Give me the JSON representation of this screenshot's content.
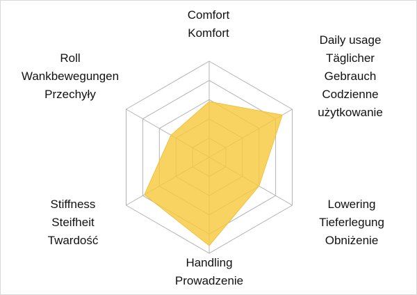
{
  "chart_data": {
    "type": "radar",
    "title": "",
    "max": 5,
    "rings": 5,
    "grid": true,
    "legend": "none",
    "fill_color": "rgba(247,201,62,0.82)",
    "stroke_color": "#eec33a",
    "grid_color": "#b3b3b3",
    "axes": [
      {
        "name": "comfort",
        "label": "Comfort\nKomfort",
        "value": 2.9
      },
      {
        "name": "daily-usage",
        "label": "Daily usage\nTäglicher\nGebrauch\nCodzienne\nużytkowanie",
        "value": 4.4
      },
      {
        "name": "lowering",
        "label": "Lowering\nTieferlegung\nObniżenie",
        "value": 3.0
      },
      {
        "name": "handling",
        "label": "Handling\nProwadzenie",
        "value": 4.6
      },
      {
        "name": "stiffness",
        "label": "Stiffness\nSteifheit\nTwardość",
        "value": 3.9
      },
      {
        "name": "roll",
        "label": "Roll\nWankbewegungen\nPrzechyły",
        "value": 2.3
      }
    ]
  }
}
